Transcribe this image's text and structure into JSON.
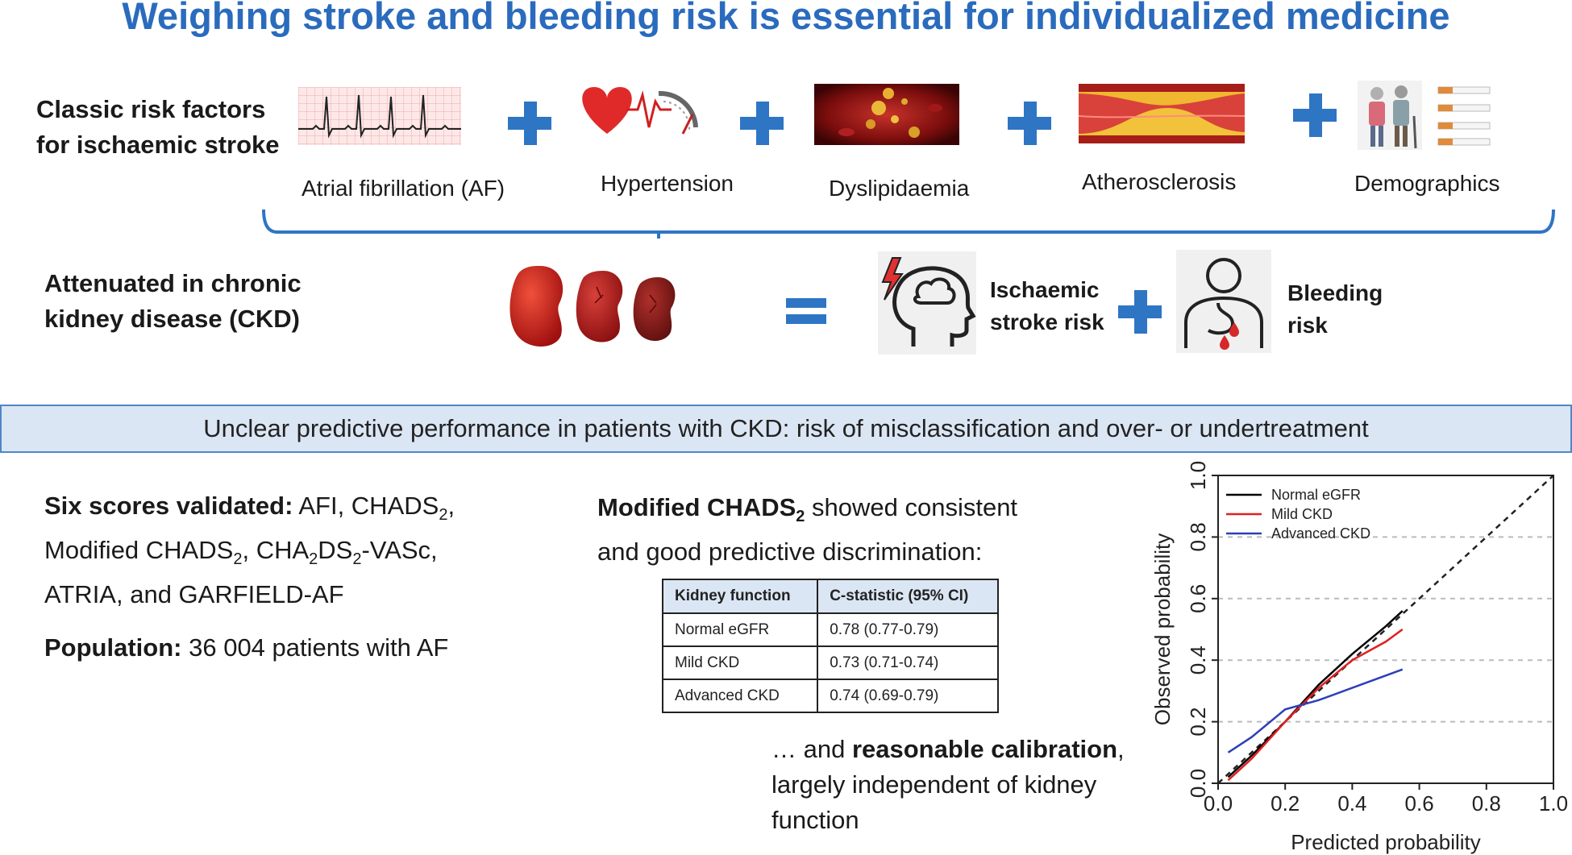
{
  "title": "Weighing stroke and bleeding risk is essential for individualized medicine",
  "classic": {
    "heading_line1": "Classic risk factors",
    "heading_line2": "for ischaemic stroke",
    "factors": [
      "Atrial fibrillation (AF)",
      "Hypertension",
      "Dyslipidaemia",
      "Atherosclerosis",
      "Demographics"
    ]
  },
  "ckd": {
    "heading_line1": "Attenuated in chronic",
    "heading_line2": "kidney disease (CKD)",
    "stroke_line1": "Ischaemic",
    "stroke_line2": "stroke risk",
    "bleeding_line1": "Bleeding",
    "bleeding_line2": "risk"
  },
  "banner": "Unclear predictive performance in patients with CKD: risk of misclassification and over- or undertreatment",
  "scores": {
    "bold": "Six scores validated:",
    "afi": "AFI, CHADS",
    "sub2": "2",
    "comma": ",",
    "modified": "Modified CHADS",
    "cha": "CHA",
    "ds": "DS",
    "vasc": "-VASc,",
    "line3": "ATRIA, and GARFIELD-AF"
  },
  "population": {
    "bold": "Population:",
    "text": "36 004 patients with AF"
  },
  "modified": {
    "bold": "Modified CHADS",
    "sub": "2",
    "rest": " showed consistent",
    "line2": "and good predictive discrimination:"
  },
  "table": {
    "headers": [
      "Kidney function",
      "C-statistic (95% CI)"
    ],
    "rows": [
      [
        "Normal eGFR",
        "0.78 (0.77-0.79)"
      ],
      [
        "Mild CKD",
        "0.73 (0.71-0.74)"
      ],
      [
        "Advanced CKD",
        "0.74 (0.69-0.79)"
      ]
    ]
  },
  "calibration": {
    "prefix": "… and ",
    "bold": "reasonable calibration",
    "suffix": ",",
    "line2": "largely independent of kidney",
    "line3": "function"
  },
  "chart_data": {
    "type": "line",
    "xlabel": "Predicted probability",
    "ylabel": "Observed probability",
    "xlim": [
      0,
      1
    ],
    "ylim": [
      0,
      1
    ],
    "xticks": [
      "0.0",
      "0.2",
      "0.4",
      "0.6",
      "0.8",
      "1.0"
    ],
    "yticks": [
      "0.0",
      "0.2",
      "0.4",
      "0.6",
      "0.8",
      "1.0"
    ],
    "legend_position": "top-left",
    "grid": "horizontal dashed",
    "reference_line": "diagonal dashed",
    "series": [
      {
        "name": "Normal eGFR",
        "color": "#000000",
        "x": [
          0.03,
          0.1,
          0.2,
          0.3,
          0.4,
          0.5,
          0.55
        ],
        "y": [
          0.02,
          0.09,
          0.2,
          0.32,
          0.42,
          0.51,
          0.56
        ]
      },
      {
        "name": "Mild CKD",
        "color": "#e02020",
        "x": [
          0.03,
          0.1,
          0.2,
          0.3,
          0.4,
          0.5,
          0.55
        ],
        "y": [
          0.01,
          0.08,
          0.2,
          0.31,
          0.4,
          0.46,
          0.5
        ]
      },
      {
        "name": "Advanced CKD",
        "color": "#2d3fb8",
        "x": [
          0.03,
          0.1,
          0.2,
          0.3,
          0.4,
          0.5,
          0.55
        ],
        "y": [
          0.1,
          0.15,
          0.24,
          0.27,
          0.31,
          0.35,
          0.37
        ]
      }
    ]
  }
}
